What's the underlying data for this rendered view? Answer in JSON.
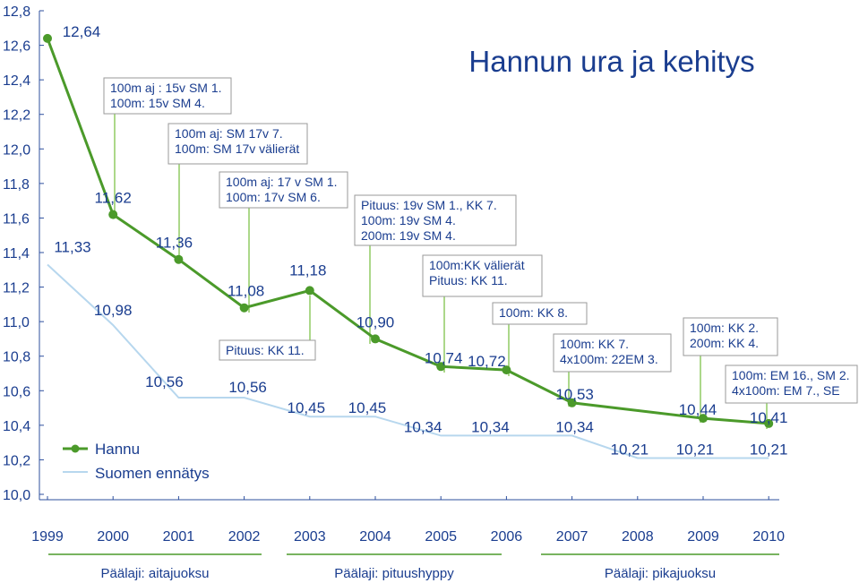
{
  "chart_data": {
    "type": "line",
    "title": "Hannun ura ja kehitys",
    "categories": [
      "1999",
      "2000",
      "2001",
      "2002",
      "2003",
      "2004",
      "2005",
      "2006",
      "2007",
      "2008",
      "2009",
      "2010"
    ],
    "ylim": [
      10.0,
      12.8
    ],
    "yticks": [
      "10,0",
      "10,2",
      "10,4",
      "10,6",
      "10,8",
      "11,0",
      "11,2",
      "11,4",
      "11,6",
      "11,8",
      "12,0",
      "12,2",
      "12,4",
      "12,6",
      "12,8"
    ],
    "grid": false,
    "legend_position": "bottom-left",
    "series": [
      {
        "name": "Hannu",
        "color": "#4b9a2a",
        "points": [
          {
            "x": 0,
            "y": 12.64,
            "label": "12,64"
          },
          {
            "x": 1,
            "y": 11.62,
            "label": "11,62"
          },
          {
            "x": 2,
            "y": 11.36,
            "label": "11,36"
          },
          {
            "x": 3,
            "y": 11.08,
            "label": "11,08"
          },
          {
            "x": 4,
            "y": 11.18,
            "label": "11,18"
          },
          {
            "x": 5,
            "y": 10.9,
            "label": "10,90"
          },
          {
            "x": 6,
            "y": 10.74,
            "label": "10,74"
          },
          {
            "x": 7,
            "y": 10.72,
            "label": "10,72"
          },
          {
            "x": 8,
            "y": 10.53,
            "label": "10,53"
          },
          {
            "x": 10,
            "y": 10.44,
            "label": "10,44"
          },
          {
            "x": 11,
            "y": 10.41,
            "label": "10,41"
          }
        ]
      },
      {
        "name": "Suomen ennätys",
        "color": "#b7d7ee",
        "points": [
          {
            "x": 0,
            "y": 11.33,
            "label": "11,33"
          },
          {
            "x": 1,
            "y": 10.98,
            "label": "10,98"
          },
          {
            "x": 2,
            "y": 10.56,
            "label": "10,56"
          },
          {
            "x": 3,
            "y": 10.56,
            "label": "10,56"
          },
          {
            "x": 4,
            "y": 10.45,
            "label": "10,45"
          },
          {
            "x": 5,
            "y": 10.45,
            "label": "10,45"
          },
          {
            "x": 6,
            "y": 10.34,
            "label": "10,34"
          },
          {
            "x": 7,
            "y": 10.34,
            "label": "10,34"
          },
          {
            "x": 8,
            "y": 10.34,
            "label": "10,34"
          },
          {
            "x": 9,
            "y": 10.21,
            "label": "10,21"
          },
          {
            "x": 10,
            "y": 10.21,
            "label": "10,21"
          },
          {
            "x": 11,
            "y": 10.21,
            "label": "10,21"
          }
        ]
      }
    ],
    "annotations": [
      {
        "lines": [
          "100m aj : 15v SM 1.",
          "100m: 15v SM 4."
        ],
        "x": 1
      },
      {
        "lines": [
          "100m aj: SM 17v 7.",
          "100m: SM 17v välierät"
        ],
        "x": 2
      },
      {
        "lines": [
          "100m aj: 17 v SM 1.",
          "100m: 17v SM 6."
        ],
        "x": 3
      },
      {
        "lines": [
          "Pituus: KK 11."
        ],
        "x": 4
      },
      {
        "lines": [
          "Pituus: 19v SM 1., KK 7.",
          "100m: 19v SM 4.",
          "200m: 19v SM 4."
        ],
        "x": 5
      },
      {
        "lines": [
          "100m:KK välierät",
          "Pituus: KK 11."
        ],
        "x": 6
      },
      {
        "lines": [
          "100m: KK 8."
        ],
        "x": 7
      },
      {
        "lines": [
          "100m: KK 7.",
          "4x100m: 22EM 3."
        ],
        "x": 8
      },
      {
        "lines": [
          "100m: KK 2.",
          "200m: KK 4."
        ],
        "x": 10
      },
      {
        "lines": [
          "100m: EM 16., SM 2.",
          "4x100m: EM 7., SE"
        ],
        "x": 11
      }
    ],
    "periods": [
      {
        "label": "Päälaji: aitajuoksu",
        "from": 0,
        "to": 3
      },
      {
        "label": "Päälaji: pituushyppy",
        "from": 4,
        "to": 7
      },
      {
        "label": "Päälaji: pikajuoksu",
        "from": 8,
        "to": 11
      }
    ]
  }
}
